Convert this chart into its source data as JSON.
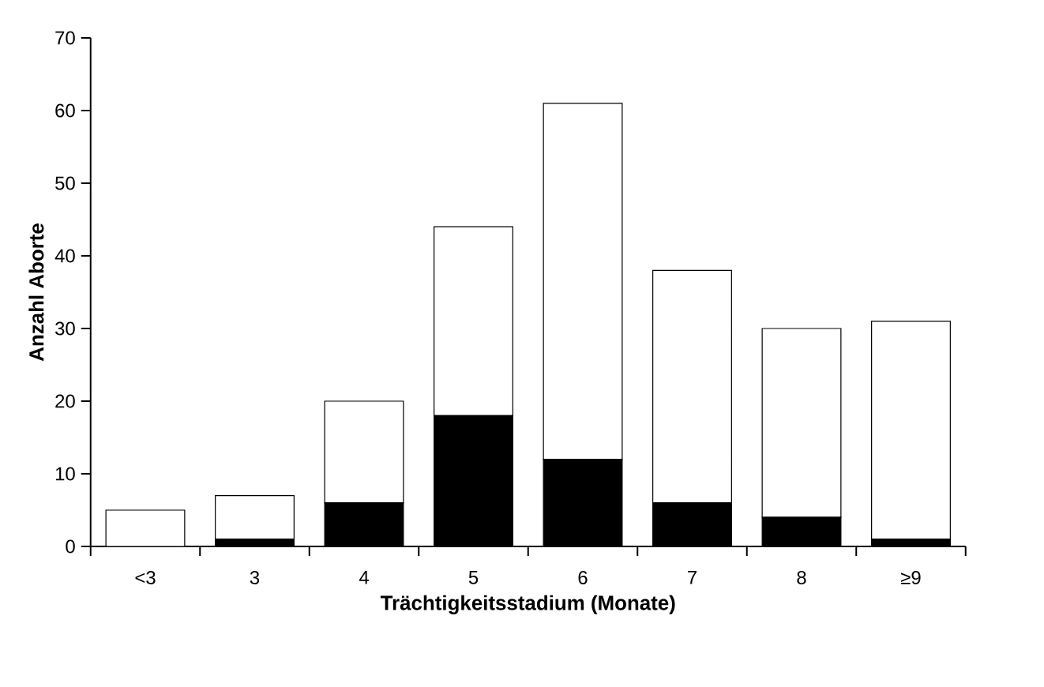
{
  "chart_data": {
    "type": "bar",
    "stacked": true,
    "xlabel": "Trächtigkeitsstadium (Monate)",
    "ylabel": "Anzahl Aborte",
    "categories": [
      "<3",
      "3",
      "4",
      "5",
      "6",
      "7",
      "8",
      "≥9"
    ],
    "series": [
      {
        "color": "#000000",
        "values": [
          0,
          1,
          6,
          18,
          12,
          6,
          4,
          1
        ]
      },
      {
        "color": "#ffffff",
        "values": [
          5,
          6,
          14,
          26,
          49,
          32,
          26,
          30
        ]
      }
    ],
    "ylim": [
      0,
      70
    ],
    "yticks": [
      0,
      10,
      20,
      30,
      40,
      50,
      60,
      70
    ],
    "grid": false
  }
}
